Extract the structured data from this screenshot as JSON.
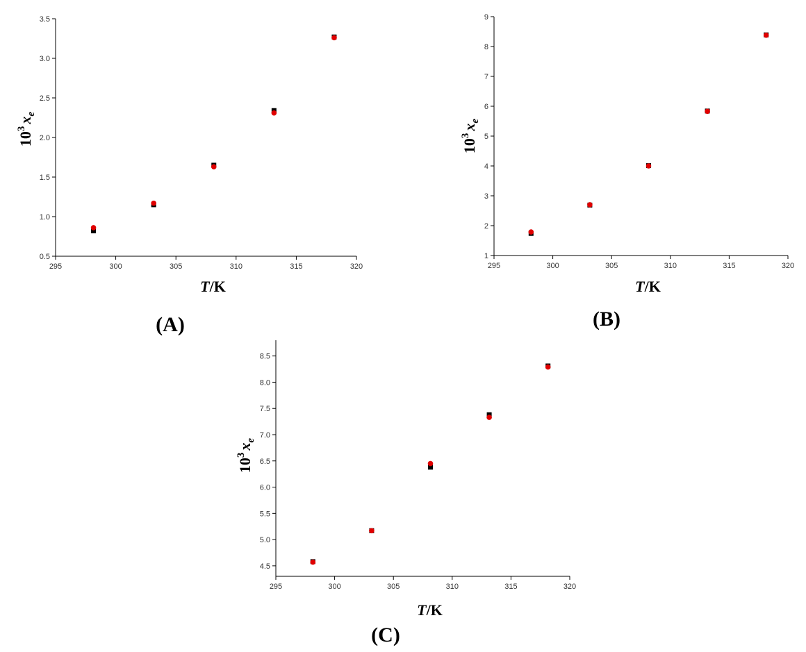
{
  "colors": {
    "experimental": "#000000",
    "calculated": "#e00000",
    "axis": "#000000"
  },
  "chart_data": [
    {
      "type": "scatter",
      "panel_label": "(A)",
      "xlabel": {
        "italic": "T",
        "rest": "/K"
      },
      "ylabel": {
        "base": "10",
        "exp": "3",
        "var": "x",
        "sub": "e"
      },
      "xlim": [
        295,
        320
      ],
      "ylim": [
        0.5,
        3.5
      ],
      "xticks": [
        "295",
        "300",
        "305",
        "310",
        "315",
        "320"
      ],
      "yticks": [
        "0.5",
        "1.0",
        "1.5",
        "2.0",
        "2.5",
        "3.0",
        "3.5"
      ],
      "series": [
        {
          "marker": "square",
          "color": "#000000",
          "x": [
            298.15,
            303.15,
            308.15,
            313.15,
            318.15
          ],
          "y": [
            0.82,
            1.15,
            1.65,
            2.34,
            3.27
          ]
        },
        {
          "marker": "circle",
          "color": "#e00000",
          "x": [
            298.15,
            303.15,
            308.15,
            313.15,
            318.15
          ],
          "y": [
            0.86,
            1.17,
            1.63,
            2.31,
            3.26
          ]
        }
      ]
    },
    {
      "type": "scatter",
      "panel_label": "(B)",
      "xlabel": {
        "italic": "T",
        "rest": "/K"
      },
      "ylabel": {
        "base": "10",
        "exp": "3",
        "var": "x",
        "sub": "e"
      },
      "xlim": [
        295,
        320
      ],
      "ylim": [
        1,
        9
      ],
      "xticks": [
        "295",
        "300",
        "305",
        "310",
        "315",
        "320"
      ],
      "yticks": [
        "1",
        "2",
        "3",
        "4",
        "5",
        "6",
        "7",
        "8",
        "9"
      ],
      "series": [
        {
          "marker": "square",
          "color": "#000000",
          "x": [
            298.15,
            303.15,
            308.15,
            313.15,
            318.15
          ],
          "y": [
            1.74,
            2.69,
            4.01,
            5.84,
            8.39
          ]
        },
        {
          "marker": "circle",
          "color": "#e00000",
          "x": [
            298.15,
            303.15,
            308.15,
            313.15,
            318.15
          ],
          "y": [
            1.79,
            2.7,
            4.0,
            5.83,
            8.38
          ]
        }
      ]
    },
    {
      "type": "scatter",
      "panel_label": "(C)",
      "xlabel": {
        "italic": "T",
        "rest": "/K"
      },
      "ylabel": {
        "base": "10",
        "exp": "3",
        "var": "x",
        "sub": "e"
      },
      "xlim": [
        295,
        320
      ],
      "ylim": [
        4.3,
        8.8
      ],
      "xticks": [
        "295",
        "300",
        "305",
        "310",
        "315",
        "320"
      ],
      "yticks": [
        "4.5",
        "5.0",
        "5.5",
        "6.0",
        "6.5",
        "7.0",
        "7.5",
        "8.0",
        "8.5"
      ],
      "series": [
        {
          "marker": "square",
          "color": "#000000",
          "x": [
            298.15,
            303.15,
            308.15,
            313.15,
            318.15
          ],
          "y": [
            4.58,
            5.17,
            6.38,
            7.38,
            8.31
          ]
        },
        {
          "marker": "circle",
          "color": "#e00000",
          "x": [
            298.15,
            303.15,
            308.15,
            313.15,
            318.15
          ],
          "y": [
            4.57,
            5.17,
            6.45,
            7.33,
            8.29
          ]
        }
      ]
    }
  ]
}
